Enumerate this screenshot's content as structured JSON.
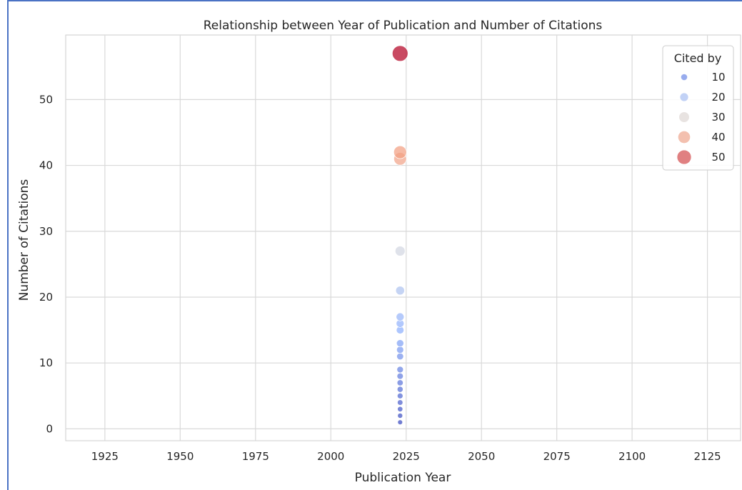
{
  "chart_data": {
    "type": "scatter",
    "title": "Relationship between Year of Publication and Number of Citations",
    "xlabel": "Publication Year",
    "ylabel": "Number of Citations",
    "xlim": [
      1912,
      2136
    ],
    "ylim": [
      -1.8,
      59.8
    ],
    "x_ticks": [
      1925,
      1950,
      1975,
      2000,
      2025,
      2050,
      2075,
      2100,
      2125
    ],
    "y_ticks": [
      0,
      10,
      20,
      30,
      40,
      50
    ],
    "grid": true,
    "legend_position": "top-right",
    "legend": {
      "title": "Cited by",
      "entries": [
        {
          "label": "10",
          "value": 10
        },
        {
          "label": "20",
          "value": 20
        },
        {
          "label": "30",
          "value": 30
        },
        {
          "label": "40",
          "value": 40
        },
        {
          "label": "50",
          "value": 50
        }
      ]
    },
    "colormap": "coolwarm",
    "points": [
      {
        "x": 2023,
        "y": 1
      },
      {
        "x": 2023,
        "y": 2
      },
      {
        "x": 2023,
        "y": 3
      },
      {
        "x": 2023,
        "y": 4
      },
      {
        "x": 2023,
        "y": 5
      },
      {
        "x": 2023,
        "y": 6
      },
      {
        "x": 2023,
        "y": 7
      },
      {
        "x": 2023,
        "y": 8
      },
      {
        "x": 2023,
        "y": 9
      },
      {
        "x": 2023,
        "y": 11
      },
      {
        "x": 2023,
        "y": 12
      },
      {
        "x": 2023,
        "y": 13
      },
      {
        "x": 2023,
        "y": 15
      },
      {
        "x": 2023,
        "y": 16
      },
      {
        "x": 2023,
        "y": 17
      },
      {
        "x": 2023,
        "y": 21
      },
      {
        "x": 2023,
        "y": 27
      },
      {
        "x": 2023,
        "y": 41
      },
      {
        "x": 2023,
        "y": 42
      },
      {
        "x": 2023,
        "y": 57
      }
    ]
  }
}
